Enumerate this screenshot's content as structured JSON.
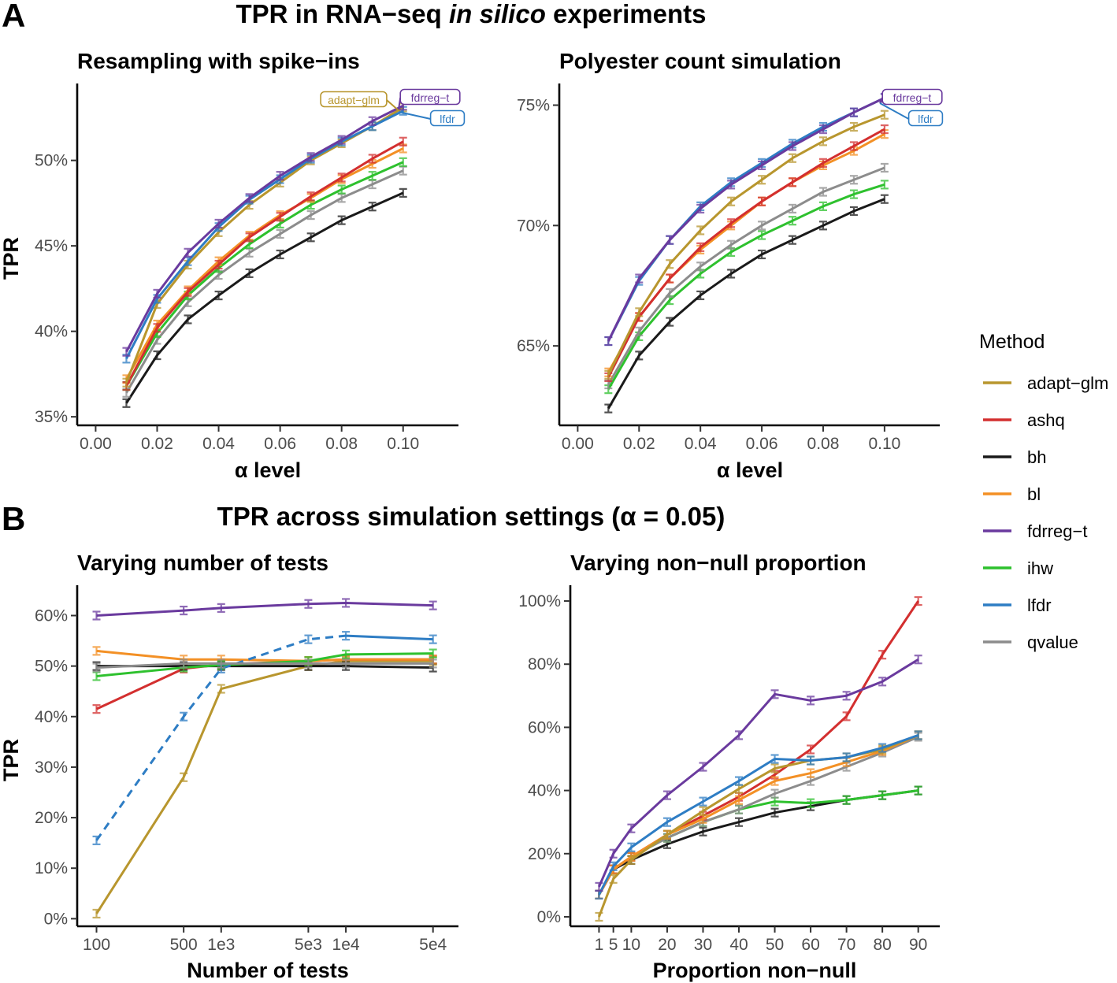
{
  "figure": {
    "panel_a_letter": "A",
    "panel_a_title": "TPR in RNA−seq",
    "panel_a_title_italic": "in silico",
    "panel_a_title_end": "experiments",
    "panel_b_letter": "B",
    "panel_b_title": "TPR across simulation settings (α = 0.05)"
  },
  "legend": {
    "title": "Method",
    "items": [
      {
        "label": "adapt−glm",
        "color": "#B8962E"
      },
      {
        "label": "ashq",
        "color": "#D32F2F"
      },
      {
        "label": "bh",
        "color": "#1A1A1A"
      },
      {
        "label": "bl",
        "color": "#F39025"
      },
      {
        "label": "fdrreg−t",
        "color": "#6A3A9E"
      },
      {
        "label": "ihw",
        "color": "#2EC12E"
      },
      {
        "label": "lfdr",
        "color": "#2E7DC4"
      },
      {
        "label": "qvalue",
        "color": "#8C8C8C"
      }
    ]
  },
  "chart_data": [
    {
      "id": "a1",
      "type": "line",
      "title": "Resampling with spike−ins",
      "xlabel": "α level",
      "ylabel": "TPR",
      "x": [
        0.01,
        0.02,
        0.03,
        0.04,
        0.05,
        0.06,
        0.07,
        0.08,
        0.09,
        0.1
      ],
      "xticks": [
        "0.00",
        "0.02",
        "0.04",
        "0.06",
        "0.08",
        "0.10"
      ],
      "yticks": [
        "35%",
        "40%",
        "45%",
        "50%"
      ],
      "xlim": [
        -0.006,
        0.118
      ],
      "ylim": [
        34.5,
        54.5
      ],
      "callouts": [
        "adapt−glm",
        "fdrreg−t",
        "lfdr"
      ],
      "series": [
        {
          "name": "bh",
          "values": [
            35.8,
            38.6,
            40.7,
            42.1,
            43.4,
            44.5,
            45.5,
            46.5,
            47.3,
            48.1
          ]
        },
        {
          "name": "qvalue",
          "values": [
            36.4,
            39.5,
            41.7,
            43.3,
            44.6,
            45.7,
            46.8,
            47.8,
            48.6,
            49.4
          ]
        },
        {
          "name": "ihw",
          "values": [
            36.8,
            39.9,
            42.1,
            43.7,
            45.1,
            46.3,
            47.4,
            48.3,
            49.1,
            49.9
          ]
        },
        {
          "name": "bl",
          "values": [
            37.2,
            40.4,
            42.4,
            44.1,
            45.6,
            46.8,
            47.8,
            48.9,
            49.8,
            50.7
          ]
        },
        {
          "name": "ashq",
          "values": [
            36.8,
            40.2,
            42.3,
            43.9,
            45.5,
            46.7,
            47.9,
            49.0,
            50.1,
            51.1
          ]
        },
        {
          "name": "adapt−glm",
          "values": [
            37.0,
            41.6,
            43.9,
            45.8,
            47.4,
            48.7,
            50.0,
            51.0,
            52.0,
            53.1
          ]
        },
        {
          "name": "lfdr",
          "values": [
            38.4,
            41.9,
            44.1,
            46.1,
            47.7,
            48.9,
            50.1,
            51.1,
            52.0,
            52.9
          ]
        },
        {
          "name": "fdrreg−t",
          "values": [
            38.8,
            42.2,
            44.6,
            46.3,
            47.8,
            49.1,
            50.2,
            51.2,
            52.3,
            53.2
          ]
        }
      ]
    },
    {
      "id": "a2",
      "type": "line",
      "title": "Polyester count simulation",
      "xlabel": "α level",
      "ylabel": "",
      "x": [
        0.01,
        0.02,
        0.03,
        0.04,
        0.05,
        0.06,
        0.07,
        0.08,
        0.09,
        0.1
      ],
      "xticks": [
        "0.00",
        "0.02",
        "0.04",
        "0.06",
        "0.08",
        "0.10"
      ],
      "yticks": [
        "65%",
        "70%",
        "75%"
      ],
      "xlim": [
        -0.006,
        0.118
      ],
      "ylim": [
        61.7,
        75.9
      ],
      "callouts": [
        "fdrreg−t",
        "lfdr"
      ],
      "series": [
        {
          "name": "bh",
          "values": [
            62.4,
            64.6,
            66.0,
            67.1,
            68.0,
            68.8,
            69.4,
            70.0,
            70.6,
            71.1
          ]
        },
        {
          "name": "ihw",
          "values": [
            63.2,
            65.4,
            66.9,
            68.0,
            68.9,
            69.6,
            70.2,
            70.8,
            71.3,
            71.7
          ]
        },
        {
          "name": "qvalue",
          "values": [
            63.4,
            65.6,
            67.2,
            68.3,
            69.2,
            70.0,
            70.7,
            71.4,
            71.9,
            72.4
          ]
        },
        {
          "name": "bl",
          "values": [
            63.9,
            66.2,
            67.8,
            69.0,
            70.0,
            71.0,
            71.8,
            72.5,
            73.1,
            73.8
          ]
        },
        {
          "name": "ashq",
          "values": [
            63.7,
            66.2,
            67.8,
            69.1,
            70.1,
            71.0,
            71.8,
            72.6,
            73.3,
            74.0
          ]
        },
        {
          "name": "adapt−glm",
          "values": [
            63.8,
            66.4,
            68.4,
            69.8,
            71.0,
            71.9,
            72.8,
            73.5,
            74.1,
            74.6
          ]
        },
        {
          "name": "lfdr",
          "values": [
            65.2,
            67.7,
            69.4,
            70.8,
            71.8,
            72.6,
            73.4,
            74.1,
            74.7,
            75.3
          ]
        },
        {
          "name": "fdrreg−t",
          "values": [
            65.2,
            67.8,
            69.4,
            70.7,
            71.7,
            72.5,
            73.3,
            74.0,
            74.7,
            75.3
          ]
        }
      ]
    },
    {
      "id": "b1",
      "type": "line",
      "title": "Varying number of tests",
      "xlabel": "Number of tests",
      "ylabel": "TPR",
      "x": [
        100,
        500,
        1000,
        5000,
        10000,
        50000
      ],
      "x_scale": "log",
      "xticks": [
        "100",
        "500",
        "1e3",
        "5e3",
        "1e4",
        "5e4"
      ],
      "yticks": [
        "0%",
        "10%",
        "20%",
        "30%",
        "40%",
        "50%",
        "60%"
      ],
      "xlim": [
        70,
        80000
      ],
      "ylim": [
        -1.5,
        66
      ],
      "series": [
        {
          "name": "adapt−glm",
          "values": [
            1.0,
            28.0,
            45.5,
            50.0,
            51.0,
            51.0
          ]
        },
        {
          "name": "ashq",
          "values": [
            41.5,
            49.5,
            50.3,
            51.0,
            51.3,
            51.3
          ]
        },
        {
          "name": "bh",
          "values": [
            50.0,
            50.0,
            50.0,
            50.0,
            50.0,
            49.7
          ]
        },
        {
          "name": "bl",
          "values": [
            53.0,
            51.3,
            51.3,
            51.0,
            51.3,
            51.3
          ]
        },
        {
          "name": "fdrreg−t",
          "values": [
            60.0,
            61.0,
            61.5,
            62.3,
            62.5,
            62.0
          ]
        },
        {
          "name": "ihw",
          "values": [
            48.0,
            49.7,
            50.2,
            51.0,
            52.3,
            52.5
          ]
        },
        {
          "name": "lfdr",
          "values": [
            15.5,
            40.0,
            49.5,
            55.3,
            56.0,
            55.3
          ],
          "dashed_upto": 10000
        },
        {
          "name": "qvalue",
          "values": [
            49.7,
            50.5,
            50.5,
            50.5,
            50.5,
            50.5
          ]
        }
      ]
    },
    {
      "id": "b2",
      "type": "line",
      "title": "Varying non−null proportion",
      "xlabel": "Proportion non−null",
      "ylabel": "",
      "x": [
        1,
        5,
        10,
        20,
        30,
        40,
        50,
        60,
        70,
        80,
        90
      ],
      "xticks": [
        "1",
        "5",
        "10",
        "20",
        "30",
        "40",
        "50",
        "60",
        "70",
        "80",
        "90"
      ],
      "yticks": [
        "0%",
        "20%",
        "40%",
        "60%",
        "80%",
        "100%"
      ],
      "xlim": [
        -7,
        96
      ],
      "ylim": [
        -3,
        105
      ],
      "series": [
        {
          "name": "bh",
          "values": [
            7,
            15,
            18,
            23,
            27,
            30,
            33,
            35,
            37,
            38.5,
            40
          ]
        },
        {
          "name": "ihw",
          "values": [
            7,
            15,
            19,
            25,
            30,
            34,
            36.5,
            36,
            37,
            38.5,
            40
          ]
        },
        {
          "name": "qvalue",
          "values": [
            7,
            15,
            19,
            25,
            30,
            34,
            39,
            43,
            47.5,
            52,
            57
          ]
        },
        {
          "name": "ashq",
          "values": [
            7,
            15,
            19,
            26,
            32,
            38,
            45,
            53,
            63.5,
            83,
            100
          ]
        },
        {
          "name": "bl",
          "values": [
            7,
            15,
            19,
            26,
            31,
            37,
            43,
            45.5,
            49,
            52.5,
            57.5
          ]
        },
        {
          "name": "adapt−glm",
          "values": [
            0,
            12,
            18,
            26,
            33.5,
            40.5,
            47,
            49.5,
            50.5,
            53,
            57.5
          ]
        },
        {
          "name": "lfdr",
          "values": [
            7,
            16,
            22,
            30,
            36.5,
            43,
            50,
            49.5,
            50.5,
            53.5,
            57.5
          ]
        },
        {
          "name": "fdrreg−t",
          "values": [
            9.5,
            20,
            28,
            38.5,
            47.5,
            57.5,
            70.5,
            68.5,
            70,
            74.5,
            81.5
          ]
        }
      ]
    }
  ]
}
